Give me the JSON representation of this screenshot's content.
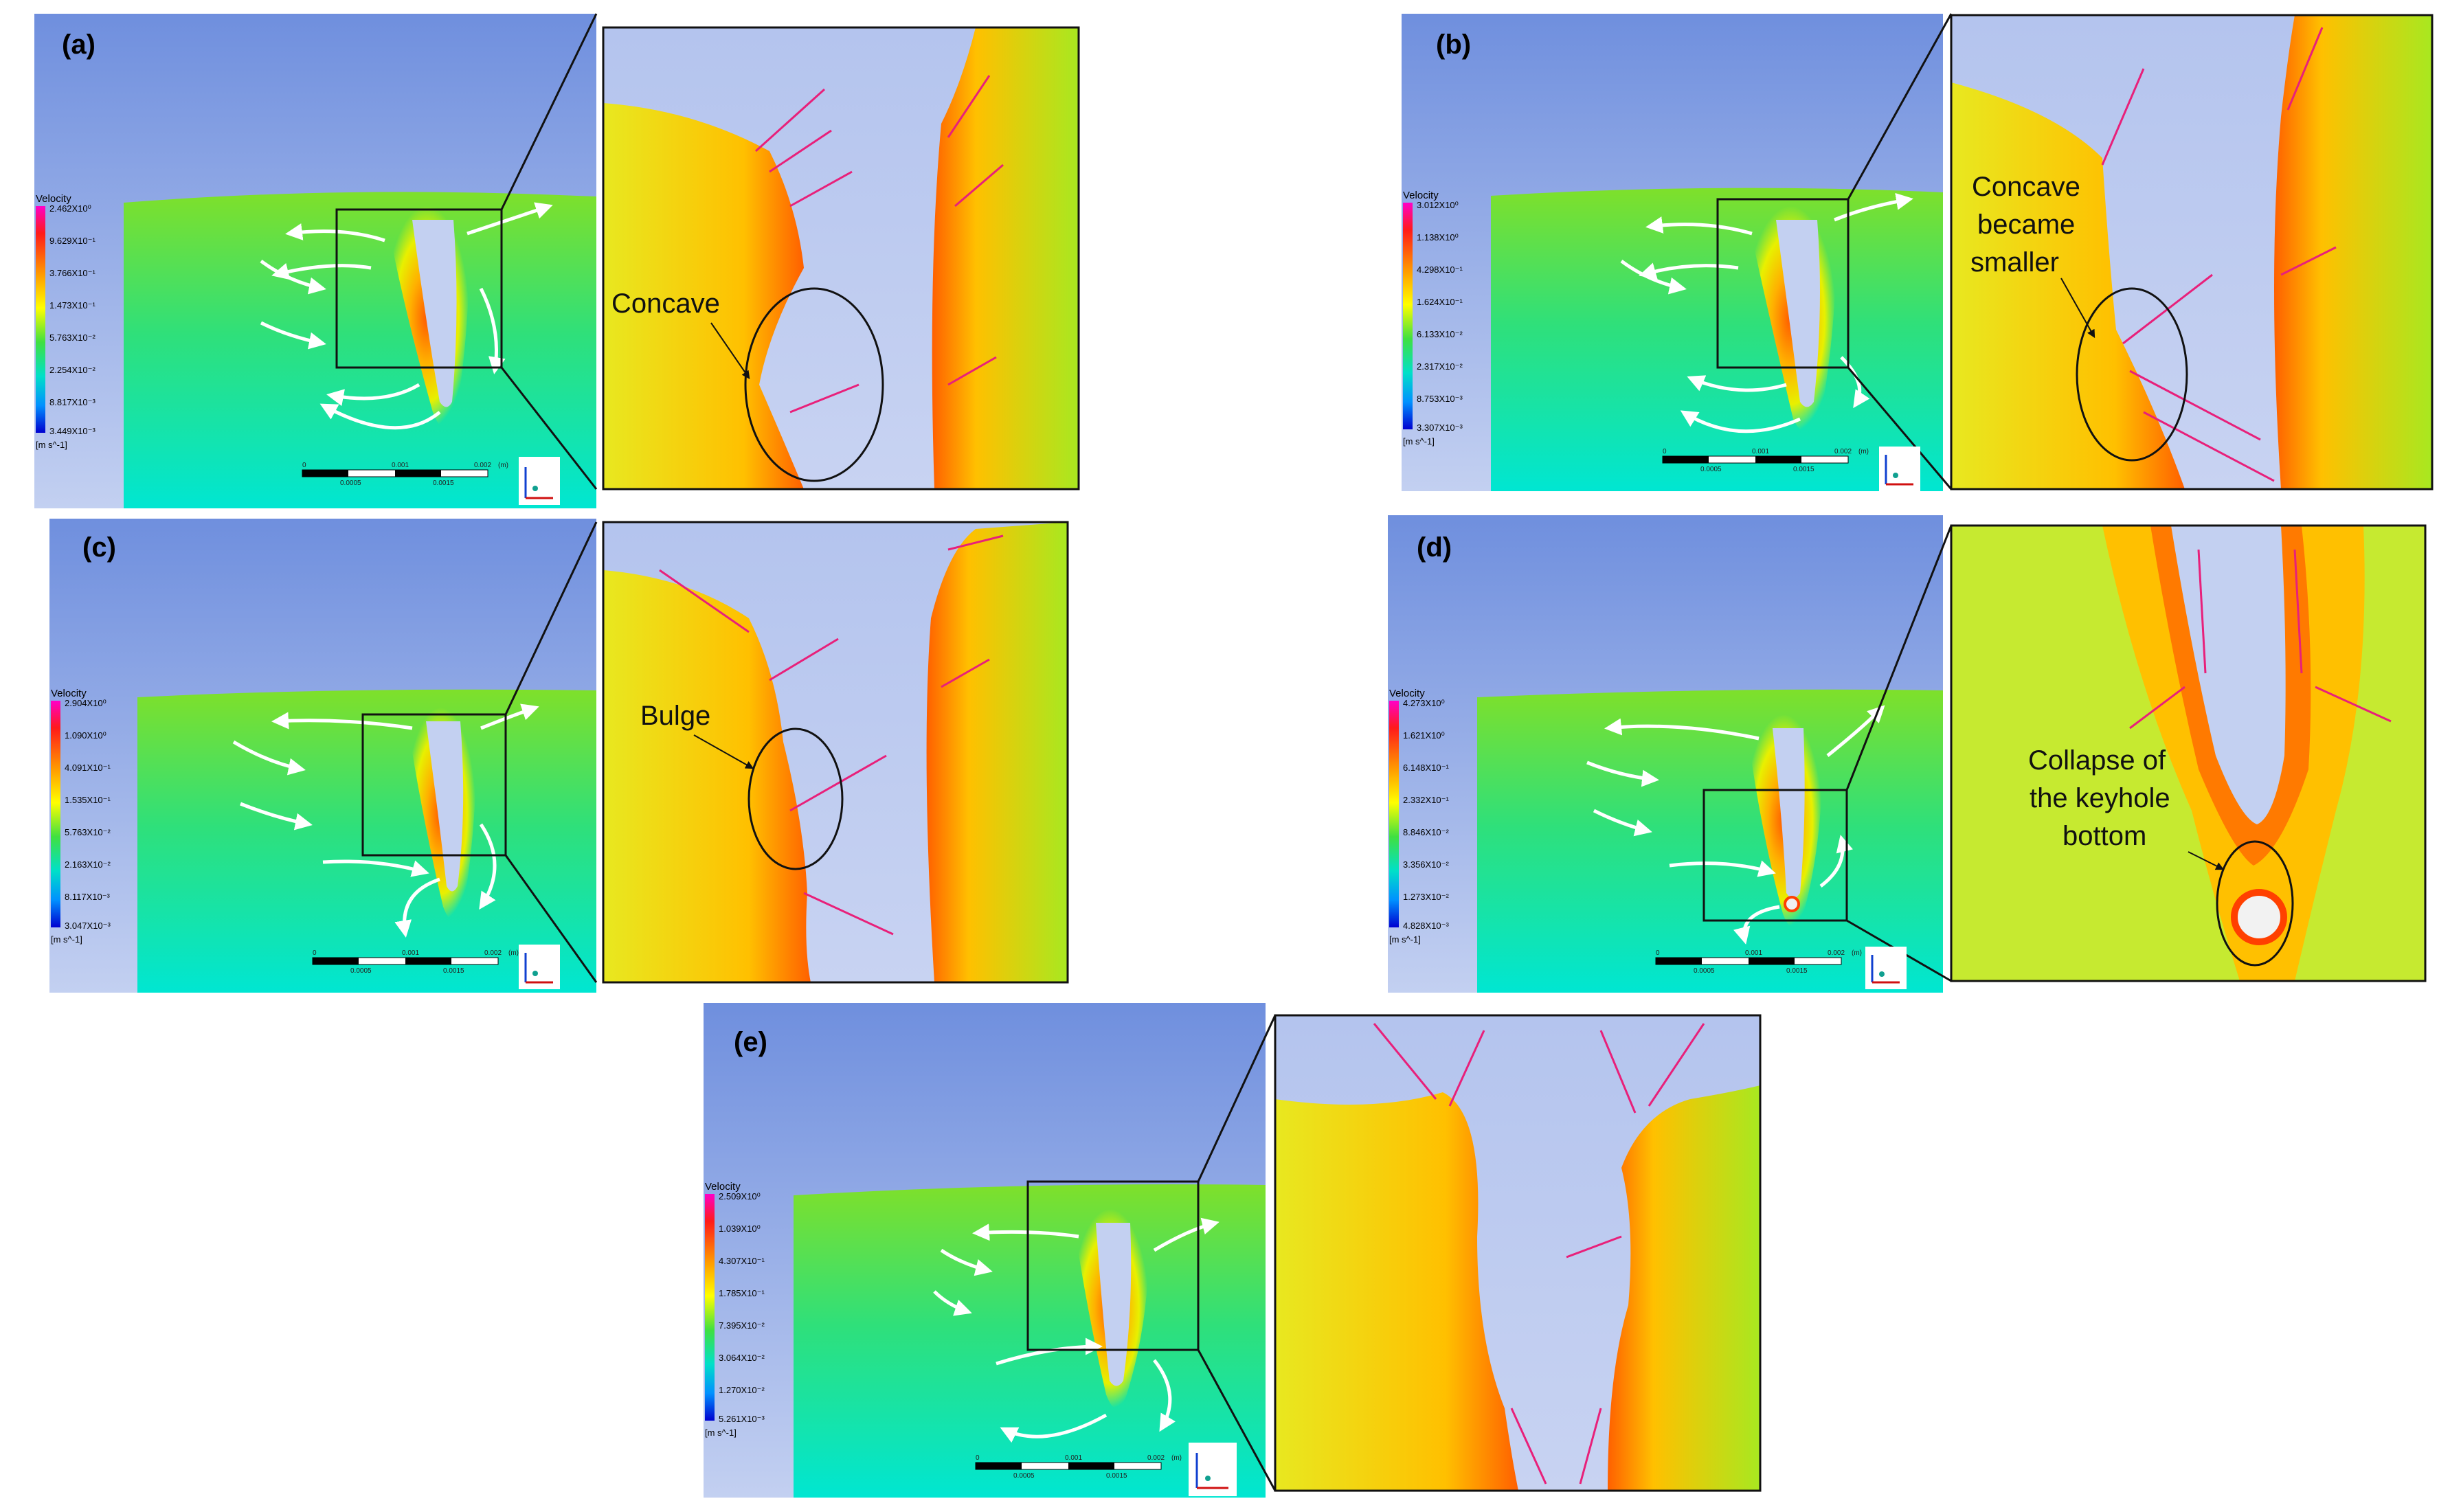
{
  "panels": [
    {
      "id": "a",
      "label": "(a)",
      "legend": {
        "title": "Velocity",
        "values": [
          "2.462X10⁰",
          "9.629X10⁻¹",
          "3.766X10⁻¹",
          "1.473X10⁻¹",
          "5.763X10⁻²",
          "2.254X10⁻²",
          "8.817X10⁻³",
          "3.449X10⁻³"
        ],
        "unit": "[m s^-1]"
      },
      "scale": {
        "ticks": [
          "0",
          "0.001",
          "0.002",
          "(m)"
        ],
        "sub_ticks": [
          "0.0005",
          "0.0015"
        ]
      },
      "annotation": "Concave"
    },
    {
      "id": "b",
      "label": "(b)",
      "legend": {
        "title": "Velocity",
        "values": [
          "3.012X10⁰",
          "1.138X10⁰",
          "4.298X10⁻¹",
          "1.624X10⁻¹",
          "6.133X10⁻²",
          "2.317X10⁻²",
          "8.753X10⁻³",
          "3.307X10⁻³"
        ],
        "unit": "[m s^-1]"
      },
      "scale": {
        "ticks": [
          "0",
          "0.001",
          "0.002",
          "(m)"
        ],
        "sub_ticks": [
          "0.0005",
          "0.0015"
        ]
      },
      "annotation": [
        "Concave",
        "became",
        "smaller"
      ]
    },
    {
      "id": "c",
      "label": "(c)",
      "legend": {
        "title": "Velocity",
        "values": [
          "2.904X10⁰",
          "1.090X10⁰",
          "4.091X10⁻¹",
          "1.535X10⁻¹",
          "5.763X10⁻²",
          "2.163X10⁻²",
          "8.117X10⁻³",
          "3.047X10⁻³"
        ],
        "unit": "[m s^-1]"
      },
      "scale": {
        "ticks": [
          "0",
          "0.001",
          "0.002",
          "(m)"
        ],
        "sub_ticks": [
          "0.0005",
          "0.0015"
        ]
      },
      "annotation": "Bulge"
    },
    {
      "id": "d",
      "label": "(d)",
      "legend": {
        "title": "Velocity",
        "values": [
          "4.273X10⁰",
          "1.621X10⁰",
          "6.148X10⁻¹",
          "2.332X10⁻¹",
          "8.846X10⁻²",
          "3.356X10⁻²",
          "1.273X10⁻²",
          "4.828X10⁻³"
        ],
        "unit": "[m s^-1]"
      },
      "scale": {
        "ticks": [
          "0",
          "0.001",
          "0.002",
          "(m)"
        ],
        "sub_ticks": [
          "0.0005",
          "0.0015"
        ]
      },
      "annotation": [
        "Collapse of",
        "the keyhole",
        "bottom"
      ]
    },
    {
      "id": "e",
      "label": "(e)",
      "legend": {
        "title": "Velocity",
        "values": [
          "2.509X10⁰",
          "1.039X10⁰",
          "4.307X10⁻¹",
          "1.785X10⁻¹",
          "7.395X10⁻²",
          "3.064X10⁻²",
          "1.270X10⁻²",
          "5.261X10⁻³"
        ],
        "unit": "[m s^-1]"
      },
      "scale": {
        "ticks": [
          "0",
          "0.001",
          "0.002",
          "(m)"
        ],
        "sub_ticks": [
          "0.0005",
          "0.0015"
        ]
      },
      "annotation": ""
    }
  ],
  "colors": {
    "sky_top": "#6f8fde",
    "sky_bottom": "#b9c8ef",
    "melt_hot": "#ff6a00",
    "melt_warm": "#ffd000",
    "melt_mid": "#7fe000",
    "melt_cool": "#00e0c0",
    "vector": "#e8207a",
    "flow_arrow": "#ffffff"
  }
}
